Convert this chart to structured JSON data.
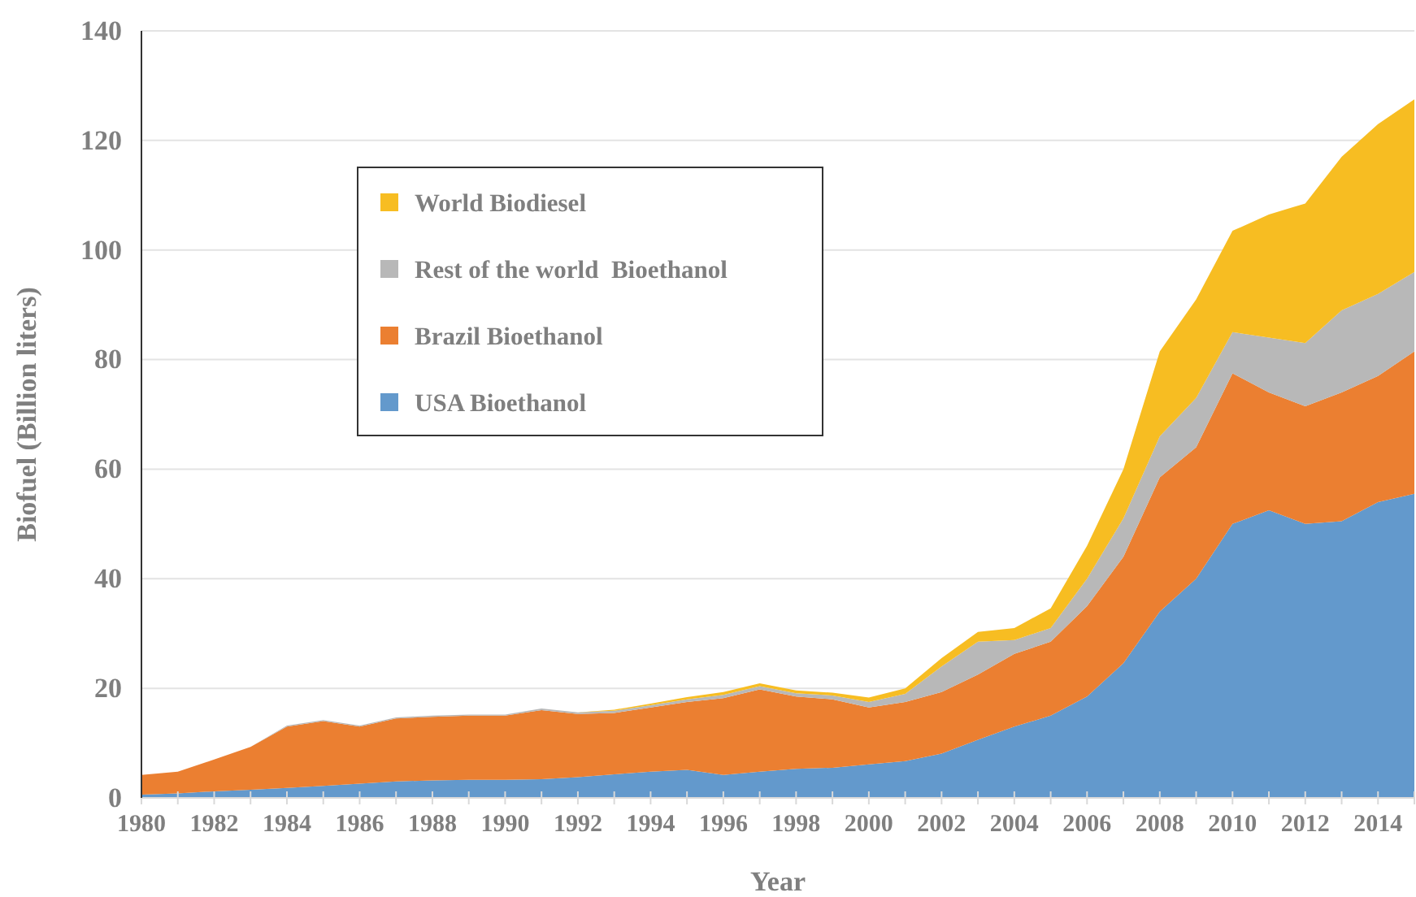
{
  "chart_data": {
    "type": "area",
    "stacked": true,
    "xlabel": "Year",
    "ylabel": "Biofuel (Billion liters)",
    "x": [
      1980,
      1981,
      1982,
      1983,
      1984,
      1985,
      1986,
      1987,
      1988,
      1989,
      1990,
      1991,
      1992,
      1993,
      1994,
      1995,
      1996,
      1997,
      1998,
      1999,
      2000,
      2001,
      2002,
      2003,
      2004,
      2005,
      2006,
      2007,
      2008,
      2009,
      2010,
      2011,
      2012,
      2013,
      2014,
      2015
    ],
    "series": [
      {
        "name": "USA Bioethanol",
        "color": "#6399cc",
        "values": [
          0.6,
          0.8,
          1.2,
          1.5,
          1.8,
          2.2,
          2.6,
          3,
          3.2,
          3.3,
          3.3,
          3.4,
          3.8,
          4.3,
          4.8,
          5.1,
          4.2,
          4.8,
          5.3,
          5.5,
          6.1,
          6.7,
          8.1,
          10.6,
          13,
          15,
          18.5,
          24.6,
          34,
          40,
          50,
          52.5,
          50,
          50.5,
          54,
          55.5
        ]
      },
      {
        "name": "Brazil Bioethanol",
        "color": "#eb7f31",
        "values": [
          3.6,
          4,
          5.8,
          7.8,
          11.2,
          11.8,
          10.4,
          11.5,
          11.6,
          11.7,
          11.7,
          12.6,
          11.5,
          11.2,
          11.7,
          12.4,
          14,
          15,
          13.2,
          12.5,
          10.4,
          10.8,
          11.2,
          11.9,
          13.3,
          13.5,
          16.5,
          19.4,
          24.5,
          24,
          27.5,
          21.5,
          21.5,
          23.5,
          23,
          26
        ]
      },
      {
        "name": "Rest of the world  Bioethanol",
        "color": "#b8b8b8",
        "values": [
          0,
          0,
          0,
          0,
          0.2,
          0.2,
          0.2,
          0.2,
          0.2,
          0.2,
          0.2,
          0.3,
          0.3,
          0.4,
          0.4,
          0.5,
          0.6,
          0.6,
          0.6,
          0.7,
          1,
          1.5,
          4.7,
          6,
          2.5,
          2.5,
          5,
          7,
          7.5,
          9,
          7.5,
          10,
          11.5,
          15,
          15,
          14.5
        ]
      },
      {
        "name": "World Biodiesel",
        "color": "#f7bd22",
        "values": [
          0,
          0,
          0,
          0,
          0,
          0,
          0,
          0,
          0,
          0,
          0,
          0,
          0,
          0.2,
          0.3,
          0.4,
          0.5,
          0.5,
          0.5,
          0.5,
          0.8,
          1,
          1.5,
          1.8,
          2.2,
          3.6,
          6,
          9,
          15.5,
          18,
          18.5,
          22.5,
          25.5,
          28,
          31,
          31.5
        ]
      }
    ],
    "xlim": [
      1980,
      2015
    ],
    "xticks": [
      1980,
      1982,
      1984,
      1986,
      1988,
      1990,
      1992,
      1994,
      1996,
      1998,
      2000,
      2002,
      2004,
      2006,
      2008,
      2010,
      2012,
      2014
    ],
    "ylim": [
      0,
      140
    ],
    "yticks": [
      0,
      20,
      40,
      60,
      80,
      100,
      120,
      140
    ],
    "grid": "y",
    "legend": "top left"
  }
}
